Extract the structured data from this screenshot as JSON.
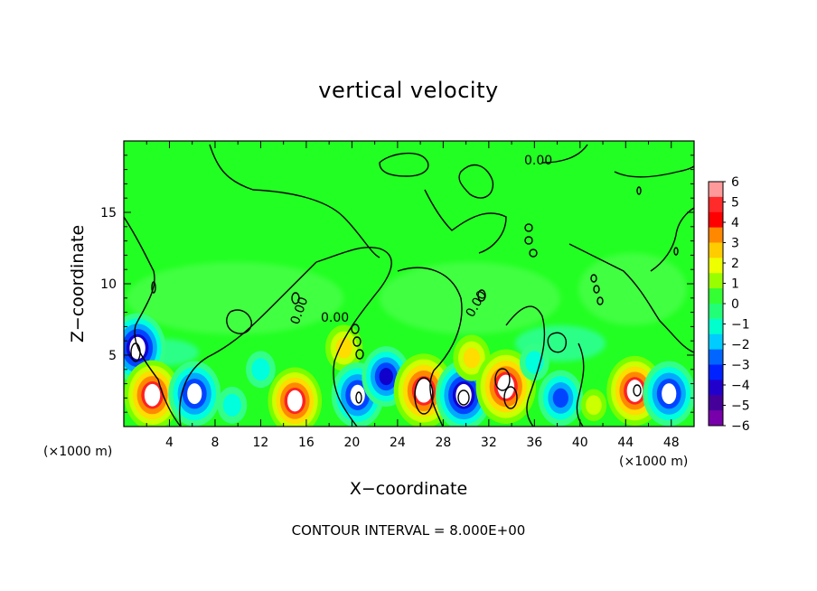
{
  "chart_data": {
    "type": "heatmap",
    "title": "vertical velocity",
    "xlabel": "X−coordinate",
    "ylabel": "Z−coordinate",
    "x_unit": "(×1000 m)",
    "xlim": [
      0,
      50
    ],
    "ylim": [
      0,
      20
    ],
    "x_ticks": [
      4,
      8,
      12,
      16,
      20,
      24,
      28,
      32,
      36,
      40,
      44,
      48
    ],
    "y_ticks": [
      5,
      10,
      15
    ],
    "colorbar_ticks": [
      "6",
      "5",
      "4",
      "3",
      "2",
      "1",
      "0",
      "−1",
      "−2",
      "−3",
      "−4",
      "−5",
      "−6"
    ],
    "colorbar_range": [
      -6,
      6
    ],
    "contour_label": "0.00",
    "contour_interval_text": "CONTOUR INTERVAL = 8.000E+00",
    "cells": [
      {
        "x": 1.2,
        "z": 5.5,
        "w": -5.5
      },
      {
        "x": 2.5,
        "z": 2.2,
        "w": 5.5
      },
      {
        "x": 6.2,
        "z": 2.3,
        "w": -5.0
      },
      {
        "x": 9.5,
        "z": 1.5,
        "w": -2.0
      },
      {
        "x": 15.0,
        "z": 1.8,
        "w": 5.2
      },
      {
        "x": 19.3,
        "z": 5.5,
        "w": 3.0
      },
      {
        "x": 20.5,
        "z": 2.2,
        "w": -5.0
      },
      {
        "x": 23.0,
        "z": 3.5,
        "w": -4.5
      },
      {
        "x": 26.3,
        "z": 2.5,
        "w": 6.0
      },
      {
        "x": 29.8,
        "z": 2.2,
        "w": -5.5
      },
      {
        "x": 30.5,
        "z": 4.8,
        "w": 3.0
      },
      {
        "x": 33.5,
        "z": 2.8,
        "w": 6.0
      },
      {
        "x": 38.3,
        "z": 2.0,
        "w": -4.0
      },
      {
        "x": 41.2,
        "z": 1.5,
        "w": 1.5
      },
      {
        "x": 44.8,
        "z": 2.5,
        "w": 5.5
      },
      {
        "x": 47.8,
        "z": 2.3,
        "w": -5.0
      },
      {
        "x": 12.0,
        "z": 4.0,
        "w": -2.0
      },
      {
        "x": 36.0,
        "z": 4.5,
        "w": -2.0
      }
    ]
  }
}
